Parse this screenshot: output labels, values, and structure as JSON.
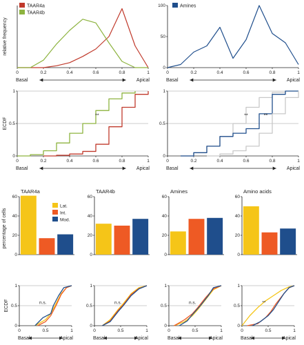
{
  "colors": {
    "taar4a": "#c0392b",
    "taar4b": "#8db33f",
    "amines": "#1f4e8c",
    "grey": "#c8c8c8",
    "lat": "#f5c518",
    "int": "#ee5a24",
    "mod": "#1f4e8c"
  },
  "chart_data": [
    {
      "id": "freqA",
      "type": "line",
      "ylabel": "relative frequency",
      "xlim": [
        0,
        1
      ],
      "ylim": [
        0,
        100
      ],
      "xticks": [
        "0",
        "0.2",
        "0.4",
        "0.6",
        "0.8",
        "1"
      ],
      "x_left_label": "Basal",
      "x_right_label": "Apical",
      "legend": [
        "TAAR4a",
        "TAAR4b"
      ],
      "series": [
        {
          "name": "TAAR4a",
          "color": "taar4a",
          "x": [
            0,
            0.1,
            0.2,
            0.3,
            0.4,
            0.5,
            0.6,
            0.7,
            0.8,
            0.9,
            1.0
          ],
          "y": [
            0,
            0,
            0,
            3,
            8,
            18,
            30,
            50,
            95,
            35,
            0
          ]
        },
        {
          "name": "TAAR4b",
          "color": "taar4b",
          "x": [
            0,
            0.1,
            0.2,
            0.3,
            0.4,
            0.5,
            0.6,
            0.7,
            0.8,
            0.9,
            1.0
          ],
          "y": [
            0,
            0,
            12,
            38,
            60,
            78,
            72,
            40,
            10,
            0,
            0
          ]
        }
      ]
    },
    {
      "id": "freqB",
      "type": "line",
      "xlim": [
        0,
        1
      ],
      "ylim": [
        0,
        100
      ],
      "yticks": [
        "0",
        "50",
        "100"
      ],
      "xticks": [
        "0",
        "0.2",
        "0.4",
        "0.6",
        "0.8",
        "1"
      ],
      "x_left_label": "Basal",
      "x_right_label": "Apical",
      "legend": [
        "Amines"
      ],
      "series": [
        {
          "name": "Amines",
          "color": "amines",
          "x": [
            0,
            0.1,
            0.2,
            0.3,
            0.4,
            0.5,
            0.6,
            0.7,
            0.8,
            0.9,
            1.0
          ],
          "y": [
            0,
            5,
            25,
            35,
            65,
            15,
            45,
            100,
            55,
            40,
            5
          ]
        }
      ]
    },
    {
      "id": "ecdfA",
      "type": "line",
      "ylabel": "ECDF",
      "xlim": [
        0,
        1
      ],
      "ylim": [
        0,
        1
      ],
      "yticks": [
        "0",
        "0.5",
        "1"
      ],
      "xticks": [
        "0",
        "0.2",
        "0.4",
        "0.6",
        "0.8",
        "1"
      ],
      "x_left_label": "Basal",
      "x_right_label": "Apical",
      "annotation": "**",
      "series": [
        {
          "name": "TAAR4b",
          "color": "taar4b",
          "x": [
            0.0,
            0.1,
            0.2,
            0.3,
            0.4,
            0.5,
            0.6,
            0.7,
            0.8,
            0.9
          ],
          "y": [
            0.0,
            0.02,
            0.08,
            0.2,
            0.35,
            0.5,
            0.7,
            0.88,
            0.97,
            1.0
          ]
        },
        {
          "name": "TAAR4a",
          "color": "taar4a",
          "x": [
            0.2,
            0.3,
            0.4,
            0.5,
            0.6,
            0.7,
            0.8,
            0.9,
            1.0
          ],
          "y": [
            0.0,
            0.01,
            0.03,
            0.07,
            0.18,
            0.45,
            0.75,
            0.95,
            1.0
          ]
        }
      ]
    },
    {
      "id": "ecdfB",
      "type": "line",
      "xlim": [
        0,
        1
      ],
      "ylim": [
        0,
        1
      ],
      "yticks": [
        "0",
        "0.5",
        "1"
      ],
      "xticks": [
        "0",
        "0.2",
        "0.4",
        "0.6",
        "0.8",
        "1"
      ],
      "x_left_label": "Basal",
      "x_right_label": "Apical",
      "annotations": [
        "**",
        "**"
      ],
      "series": [
        {
          "name": "grey-left",
          "color": "grey",
          "x": [
            0.1,
            0.2,
            0.3,
            0.4,
            0.5,
            0.6,
            0.7,
            0.8,
            0.9
          ],
          "y": [
            0.0,
            0.05,
            0.15,
            0.3,
            0.5,
            0.75,
            0.9,
            0.98,
            1.0
          ]
        },
        {
          "name": "Amines",
          "color": "amines",
          "x": [
            0.1,
            0.2,
            0.3,
            0.4,
            0.5,
            0.6,
            0.7,
            0.8,
            0.9,
            1.0
          ],
          "y": [
            0.0,
            0.05,
            0.15,
            0.3,
            0.35,
            0.42,
            0.65,
            0.95,
            1.0,
            1.0
          ]
        },
        {
          "name": "grey-right",
          "color": "grey",
          "x": [
            0.3,
            0.4,
            0.5,
            0.6,
            0.7,
            0.8,
            0.9,
            1.0
          ],
          "y": [
            0.0,
            0.03,
            0.08,
            0.15,
            0.35,
            0.65,
            0.9,
            1.0
          ]
        }
      ]
    },
    {
      "id": "bar1",
      "type": "bar",
      "title": "TAAR4a",
      "ylabel": "percentage of cells",
      "ylim": [
        0,
        60
      ],
      "yticks": [
        "0",
        "20",
        "40",
        "60"
      ],
      "legend": [
        "Lat.",
        "Int.",
        "Mod."
      ],
      "categories": [
        "Lat.",
        "Int.",
        "Mod."
      ],
      "values": [
        61,
        17,
        21
      ]
    },
    {
      "id": "bar2",
      "type": "bar",
      "title": "TAAR4b",
      "ylim": [
        0,
        60
      ],
      "yticks": [
        "0",
        "20",
        "40",
        "60"
      ],
      "categories": [
        "Lat.",
        "Int.",
        "Mod."
      ],
      "values": [
        32,
        30,
        37
      ]
    },
    {
      "id": "bar3",
      "type": "bar",
      "title": "Amines",
      "ylim": [
        0,
        60
      ],
      "yticks": [
        "0",
        "20",
        "40",
        "60"
      ],
      "categories": [
        "Lat.",
        "Int.",
        "Mod."
      ],
      "values": [
        24,
        37,
        38
      ]
    },
    {
      "id": "bar4",
      "type": "bar",
      "title": "Amino acids",
      "ylim": [
        0,
        60
      ],
      "yticks": [
        "0",
        "20",
        "40",
        "60"
      ],
      "categories": [
        "Lat.",
        "Int.",
        "Mod."
      ],
      "values": [
        50,
        23,
        27
      ]
    },
    {
      "id": "sm1",
      "type": "line",
      "ylabel": "ECDF",
      "xlim": [
        0,
        1
      ],
      "ylim": [
        0,
        1
      ],
      "yticks": [
        "0",
        "0.5",
        "1"
      ],
      "xticks": [
        "0",
        "0.5",
        "1"
      ],
      "x_left_label": "Basal",
      "x_right_label": "Apical",
      "annotation": "n.s.",
      "series": [
        {
          "name": "Lat.",
          "color": "lat",
          "x": [
            0.3,
            0.5,
            0.6,
            0.7,
            0.8,
            0.9,
            1.0
          ],
          "y": [
            0.0,
            0.15,
            0.3,
            0.55,
            0.8,
            0.95,
            1.0
          ]
        },
        {
          "name": "Int.",
          "color": "int",
          "x": [
            0.35,
            0.5,
            0.6,
            0.7,
            0.8,
            0.9,
            1.0
          ],
          "y": [
            0.0,
            0.1,
            0.25,
            0.5,
            0.78,
            0.95,
            1.0
          ]
        },
        {
          "name": "Mod.",
          "color": "mod",
          "x": [
            0.3,
            0.45,
            0.6,
            0.65,
            0.75,
            0.85,
            1.0
          ],
          "y": [
            0.0,
            0.2,
            0.3,
            0.5,
            0.75,
            0.95,
            1.0
          ]
        }
      ]
    },
    {
      "id": "sm2",
      "type": "line",
      "xlim": [
        0,
        1
      ],
      "ylim": [
        0,
        1
      ],
      "yticks": [
        "0",
        "0.5",
        "1"
      ],
      "xticks": [
        "0",
        "0.5",
        "1"
      ],
      "x_left_label": "Basal",
      "x_right_label": "Apical",
      "annotation": "n.s.",
      "series": [
        {
          "name": "Lat.",
          "color": "lat",
          "x": [
            0.15,
            0.3,
            0.45,
            0.55,
            0.7,
            0.85,
            1.0
          ],
          "y": [
            0.0,
            0.15,
            0.4,
            0.55,
            0.8,
            0.95,
            1.0
          ]
        },
        {
          "name": "Int.",
          "color": "int",
          "x": [
            0.15,
            0.3,
            0.45,
            0.55,
            0.7,
            0.85,
            1.0
          ],
          "y": [
            0.0,
            0.12,
            0.38,
            0.52,
            0.78,
            0.93,
            1.0
          ]
        },
        {
          "name": "Mod.",
          "color": "mod",
          "x": [
            0.15,
            0.3,
            0.45,
            0.55,
            0.7,
            0.85,
            1.0
          ],
          "y": [
            0.0,
            0.1,
            0.35,
            0.5,
            0.75,
            0.92,
            1.0
          ]
        }
      ]
    },
    {
      "id": "sm3",
      "type": "line",
      "xlim": [
        0,
        1
      ],
      "ylim": [
        0,
        1
      ],
      "yticks": [
        "0",
        "0.5",
        "1"
      ],
      "xticks": [
        "0",
        "0.5",
        "1"
      ],
      "x_left_label": "Basal",
      "x_right_label": "Apical",
      "annotation": "n.s.",
      "series": [
        {
          "name": "Lat.",
          "color": "lat",
          "x": [
            0.1,
            0.3,
            0.45,
            0.55,
            0.7,
            0.85,
            1.0
          ],
          "y": [
            0.0,
            0.1,
            0.25,
            0.4,
            0.65,
            0.9,
            1.0
          ]
        },
        {
          "name": "Int.",
          "color": "int",
          "x": [
            0.1,
            0.3,
            0.45,
            0.55,
            0.7,
            0.85,
            1.0
          ],
          "y": [
            0.0,
            0.15,
            0.3,
            0.45,
            0.7,
            0.92,
            1.0
          ]
        },
        {
          "name": "Mod.",
          "color": "mod",
          "x": [
            0.2,
            0.35,
            0.45,
            0.6,
            0.75,
            0.85,
            1.0
          ],
          "y": [
            0.0,
            0.12,
            0.28,
            0.5,
            0.75,
            0.95,
            1.0
          ]
        }
      ]
    },
    {
      "id": "sm4",
      "type": "line",
      "xlim": [
        0,
        1
      ],
      "ylim": [
        0,
        1
      ],
      "yticks": [
        "0",
        "0.5",
        "1"
      ],
      "xticks": [
        "0",
        "0.5",
        "1"
      ],
      "x_left_label": "Basal",
      "x_right_label": "Apical",
      "annotation": "**",
      "series": [
        {
          "name": "Lat.",
          "color": "lat",
          "x": [
            0.0,
            0.15,
            0.3,
            0.45,
            0.6,
            0.75,
            0.9,
            1.0
          ],
          "y": [
            0.0,
            0.25,
            0.45,
            0.62,
            0.75,
            0.88,
            0.97,
            1.0
          ]
        },
        {
          "name": "Int.",
          "color": "int",
          "x": [
            0.1,
            0.3,
            0.45,
            0.55,
            0.65,
            0.8,
            0.9,
            1.0
          ],
          "y": [
            0.0,
            0.05,
            0.2,
            0.35,
            0.55,
            0.8,
            0.95,
            1.0
          ]
        },
        {
          "name": "Mod.",
          "color": "mod",
          "x": [
            0.2,
            0.35,
            0.5,
            0.6,
            0.7,
            0.8,
            0.9,
            1.0
          ],
          "y": [
            0.0,
            0.1,
            0.25,
            0.4,
            0.6,
            0.8,
            0.95,
            1.0
          ]
        }
      ]
    }
  ]
}
